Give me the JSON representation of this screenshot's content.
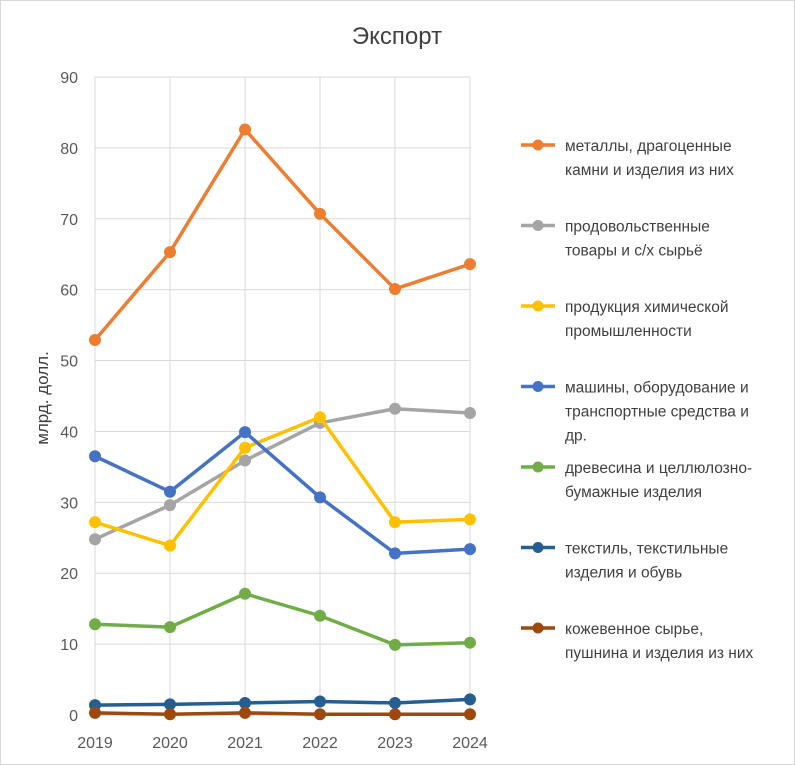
{
  "chart_data": {
    "type": "line",
    "title": "Экспорт",
    "xlabel": "",
    "ylabel": "млрд. долл.",
    "ylim": [
      0,
      90
    ],
    "yticks": [
      0,
      10,
      20,
      30,
      40,
      50,
      60,
      70,
      80,
      90
    ],
    "grid": true,
    "legend_position": "right",
    "x": [
      "2019",
      "2020",
      "2021",
      "2022",
      "2023",
      "2024"
    ],
    "series": [
      {
        "name": "металлы, драгоценные камни и изделия из них",
        "legend_lines": [
          "металлы, драгоценные",
          "камни и изделия из них"
        ],
        "color": "#ED7D31",
        "values": [
          52.9,
          65.3,
          82.6,
          70.7,
          60.1,
          63.6
        ]
      },
      {
        "name": "продовольственные товары и с/х сырьё",
        "legend_lines": [
          "продовольственные",
          "товары и с/х сырьё"
        ],
        "color": "#A5A5A5",
        "values": [
          24.8,
          29.6,
          35.9,
          41.2,
          43.2,
          42.6
        ]
      },
      {
        "name": "продукция химической промышленности",
        "legend_lines": [
          "продукция химической",
          "промышленности"
        ],
        "color": "#FFC000",
        "values": [
          27.2,
          23.9,
          37.7,
          42.0,
          27.2,
          27.6
        ]
      },
      {
        "name": "машины, оборудование и транспортные средства и др.",
        "legend_lines": [
          "машины, оборудование и",
          "транспортные средства и",
          "др."
        ],
        "color": "#4472C4",
        "values": [
          36.5,
          31.5,
          39.9,
          30.7,
          22.8,
          23.4
        ]
      },
      {
        "name": "древесина и целлюлозно-бумажные изделия",
        "legend_lines": [
          "древесина и целлюлозно-",
          "бумажные изделия"
        ],
        "color": "#70AD47",
        "values": [
          12.8,
          12.4,
          17.1,
          14.0,
          9.9,
          10.2
        ]
      },
      {
        "name": "текстиль, текстильные изделия и обувь",
        "legend_lines": [
          "текстиль, текстильные",
          "изделия и обувь"
        ],
        "color": "#255E91",
        "values": [
          1.4,
          1.5,
          1.7,
          1.9,
          1.7,
          2.2
        ]
      },
      {
        "name": "кожевенное сырье, пушнина и изделия из них",
        "legend_lines": [
          "кожевенное сырье,",
          "пушнина и изделия из них"
        ],
        "color": "#9E480E",
        "values": [
          0.3,
          0.1,
          0.3,
          0.1,
          0.1,
          0.1
        ]
      }
    ]
  }
}
